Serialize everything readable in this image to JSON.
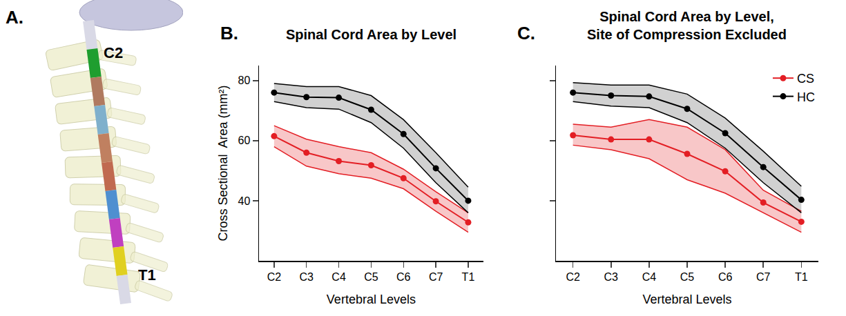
{
  "illustration": {
    "panel": "A.",
    "labels": [
      "C2",
      "T1"
    ]
  },
  "chart_data": [
    {
      "panel": "B.",
      "type": "line",
      "title": "Spinal Cord Area by Level",
      "x_label": "Vertebral Levels",
      "y_label": "Cross Sectional  Area (mm²)",
      "categories": [
        "C2",
        "C3",
        "C4",
        "C5",
        "C6",
        "C7",
        "T1"
      ],
      "ylim": [
        20,
        85
      ],
      "yticks": [
        40,
        60,
        80
      ],
      "marker": "circle",
      "series": [
        {
          "name": "CS",
          "color": "#e31e24",
          "values": [
            61.5,
            56,
            53.2,
            51.8,
            47.5,
            39.8,
            32.8
          ],
          "upper": [
            65,
            60.5,
            58,
            56,
            50.5,
            43,
            36
          ],
          "lower": [
            58,
            51.5,
            49,
            47.5,
            44,
            36.5,
            29.5
          ]
        },
        {
          "name": "HC",
          "color": "#000000",
          "values": [
            76,
            74.5,
            74.3,
            70.3,
            62.2,
            50.8,
            40
          ],
          "upper": [
            79,
            78,
            78,
            75,
            67,
            56,
            44.5
          ],
          "lower": [
            73,
            71,
            70.5,
            66,
            57.5,
            46,
            36
          ]
        }
      ]
    },
    {
      "panel": "C.",
      "type": "line",
      "title": "Spinal Cord Area by Level, Site of Compression Excluded",
      "x_label": "Vertebral Levels",
      "categories": [
        "C2",
        "C3",
        "C4",
        "C5",
        "C6",
        "C7",
        "T1"
      ],
      "ylim": [
        20,
        85
      ],
      "yticks": [
        40,
        60,
        80
      ],
      "tick_labels": "x",
      "legend": "top right",
      "marker": "circle",
      "series": [
        {
          "name": "CS",
          "color": "#e31e24",
          "values": [
            61.8,
            60.4,
            60.4,
            55.6,
            49.8,
            39.4,
            33
          ],
          "upper": [
            65.5,
            64.5,
            67,
            64.5,
            57,
            43.5,
            36.5
          ],
          "lower": [
            58.5,
            57,
            54,
            47,
            42.5,
            36,
            29.5
          ]
        },
        {
          "name": "HC",
          "color": "#000000",
          "values": [
            76,
            75,
            74.7,
            70.6,
            62.5,
            51.2,
            40.3
          ],
          "upper": [
            79.3,
            78.5,
            78.5,
            75.5,
            67.5,
            56.5,
            44.8
          ],
          "lower": [
            73,
            71.5,
            71,
            66,
            57.5,
            46,
            36
          ]
        }
      ]
    }
  ]
}
